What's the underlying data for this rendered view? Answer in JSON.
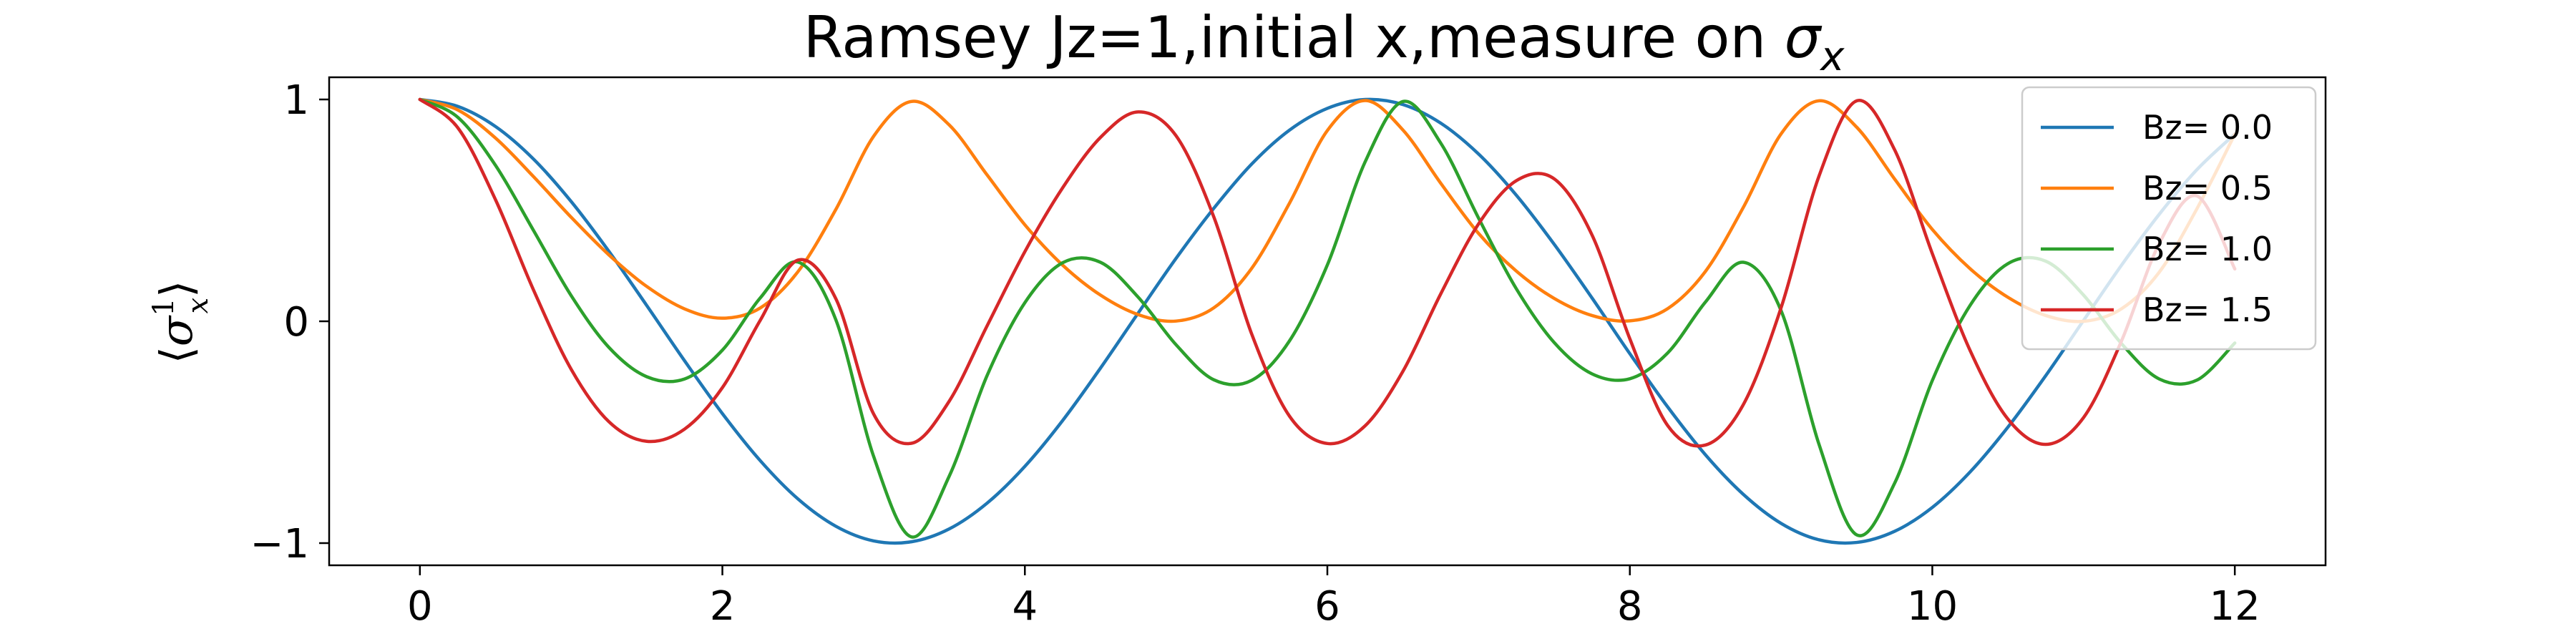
{
  "chart_data": {
    "type": "line",
    "title_prefix": "Ramsey Jz=1,initial x,measure on ",
    "title_symbol": "σ",
    "title_symbol_sub": "x",
    "xlabel": "",
    "ylabel_symbol": "σ",
    "ylabel_sup": "1",
    "ylabel_sub": "x",
    "xlim": [
      -0.6,
      12.6
    ],
    "ylim": [
      -1.1,
      1.1
    ],
    "x_ticks": [
      0,
      2,
      4,
      6,
      8,
      10,
      12
    ],
    "x_tick_labels": [
      "0",
      "2",
      "4",
      "6",
      "8",
      "10",
      "12"
    ],
    "y_ticks": [
      -1,
      0,
      1
    ],
    "y_tick_labels": [
      "−1",
      "0",
      "1"
    ],
    "grid": false,
    "legend_position": "upper-right",
    "x": [
      0.0,
      0.25,
      0.5,
      0.75,
      1.0,
      1.25,
      1.5,
      1.75,
      2.0,
      2.25,
      2.5,
      2.75,
      3.0,
      3.25,
      3.5,
      3.75,
      4.0,
      4.25,
      4.5,
      4.75,
      5.0,
      5.25,
      5.5,
      5.75,
      6.0,
      6.25,
      6.5,
      6.75,
      7.0,
      7.25,
      7.5,
      7.75,
      8.0,
      8.25,
      8.5,
      8.75,
      9.0,
      9.25,
      9.5,
      9.75,
      10.0,
      10.25,
      10.5,
      10.75,
      11.0,
      11.25,
      11.5,
      11.75,
      12.0
    ],
    "series": [
      {
        "name": "Bz= 0.0",
        "color": "#1f77b4",
        "values": [
          1.0,
          0.969,
          0.878,
          0.732,
          0.54,
          0.315,
          0.071,
          -0.178,
          -0.416,
          -0.628,
          -0.801,
          -0.924,
          -0.99,
          -0.994,
          -0.936,
          -0.82,
          -0.654,
          -0.447,
          -0.211,
          0.038,
          0.284,
          0.51,
          0.709,
          0.862,
          0.96,
          1.0,
          0.977,
          0.893,
          0.754,
          0.568,
          0.347,
          0.105,
          -0.146,
          -0.386,
          -0.602,
          -0.78,
          -0.911,
          -0.985,
          -0.997,
          -0.947,
          -0.839,
          -0.679,
          -0.477,
          -0.245,
          0.004,
          0.252,
          0.482,
          0.684,
          0.844
        ]
      },
      {
        "name": "Bz= 0.5",
        "color": "#ff7f0e",
        "values": [
          1.0,
          0.953,
          0.826,
          0.653,
          0.469,
          0.299,
          0.157,
          0.056,
          0.014,
          0.06,
          0.224,
          0.504,
          0.834,
          0.991,
          0.885,
          0.66,
          0.435,
          0.253,
          0.118,
          0.03,
          0.001,
          0.061,
          0.239,
          0.533,
          0.86,
          0.995,
          0.862,
          0.622,
          0.396,
          0.226,
          0.103,
          0.026,
          0.002,
          0.057,
          0.225,
          0.513,
          0.845,
          0.994,
          0.875,
          0.642,
          0.414,
          0.237,
          0.108,
          0.026,
          0.0,
          0.056,
          0.221,
          0.508,
          0.843
        ]
      },
      {
        "name": "Bz= 1.0",
        "color": "#2ca02c",
        "values": [
          1.0,
          0.92,
          0.703,
          0.411,
          0.116,
          -0.118,
          -0.25,
          -0.26,
          -0.13,
          0.105,
          0.267,
          0.007,
          -0.609,
          -0.972,
          -0.698,
          -0.245,
          0.084,
          0.264,
          0.266,
          0.108,
          -0.106,
          -0.264,
          -0.266,
          -0.088,
          0.254,
          0.719,
          0.991,
          0.803,
          0.465,
          0.146,
          -0.096,
          -0.237,
          -0.259,
          -0.143,
          0.087,
          0.266,
          0.048,
          -0.553,
          -0.963,
          -0.731,
          -0.267,
          0.072,
          0.26,
          0.271,
          0.118,
          -0.1,
          -0.26,
          -0.265,
          -0.098
        ]
      },
      {
        "name": "Bz= 1.5",
        "color": "#d62728",
        "values": [
          1.0,
          0.873,
          0.548,
          0.143,
          -0.216,
          -0.453,
          -0.541,
          -0.486,
          -0.299,
          0.004,
          0.276,
          0.102,
          -0.418,
          -0.55,
          -0.36,
          -0.021,
          0.314,
          0.602,
          0.829,
          0.944,
          0.836,
          0.469,
          -0.058,
          -0.428,
          -0.551,
          -0.471,
          -0.225,
          0.124,
          0.439,
          0.634,
          0.642,
          0.389,
          -0.079,
          -0.47,
          -0.558,
          -0.376,
          0.061,
          0.653,
          0.994,
          0.774,
          0.305,
          -0.132,
          -0.441,
          -0.555,
          -0.434,
          -0.09,
          0.35,
          0.565,
          0.236
        ]
      }
    ]
  }
}
